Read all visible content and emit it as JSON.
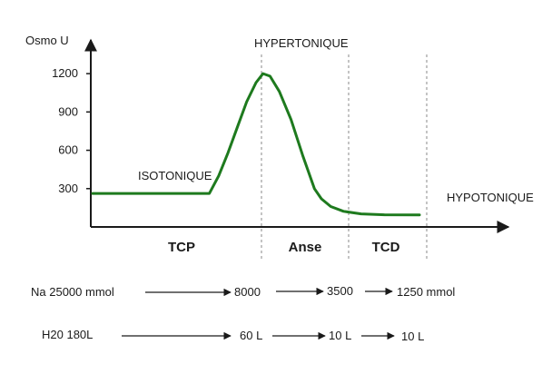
{
  "chart_data": {
    "type": "line",
    "ylabel": "Osmo U",
    "y_ticks": [
      300,
      600,
      900,
      1200
    ],
    "ylim": [
      0,
      1350
    ],
    "series": [
      {
        "color": "#1e7a1e",
        "points": [
          {
            "x": 0.0,
            "y": 262
          },
          {
            "x": 1.0,
            "y": 262
          },
          {
            "x": 1.08,
            "y": 400
          },
          {
            "x": 1.16,
            "y": 580
          },
          {
            "x": 1.24,
            "y": 780
          },
          {
            "x": 1.32,
            "y": 980
          },
          {
            "x": 1.4,
            "y": 1130
          },
          {
            "x": 1.46,
            "y": 1200
          },
          {
            "x": 1.52,
            "y": 1180
          },
          {
            "x": 1.6,
            "y": 1060
          },
          {
            "x": 1.7,
            "y": 840
          },
          {
            "x": 1.8,
            "y": 560
          },
          {
            "x": 1.9,
            "y": 300
          },
          {
            "x": 1.96,
            "y": 220
          },
          {
            "x": 2.04,
            "y": 160
          },
          {
            "x": 2.15,
            "y": 122
          },
          {
            "x": 2.3,
            "y": 102
          },
          {
            "x": 2.5,
            "y": 95
          },
          {
            "x": 2.8,
            "y": 94
          }
        ]
      }
    ],
    "segments": [
      "TCP",
      "Anse",
      "TCD"
    ],
    "zone_labels": {
      "isotonique": "ISOTONIQUE",
      "hypertonique": "HYPERTONIQUE",
      "hypotonique": "HYPOTONIQUE"
    }
  },
  "flow": {
    "na": {
      "start": "Na 25000 mmol",
      "values": [
        "8000",
        "3500",
        "1250 mmol"
      ]
    },
    "water": {
      "start": "H20 180L",
      "values": [
        "60 L",
        "10 L",
        "10 L"
      ]
    }
  },
  "colors": {
    "curve": "#1e7a1e",
    "axis": "#1a1a1a",
    "guide": "#888888"
  }
}
